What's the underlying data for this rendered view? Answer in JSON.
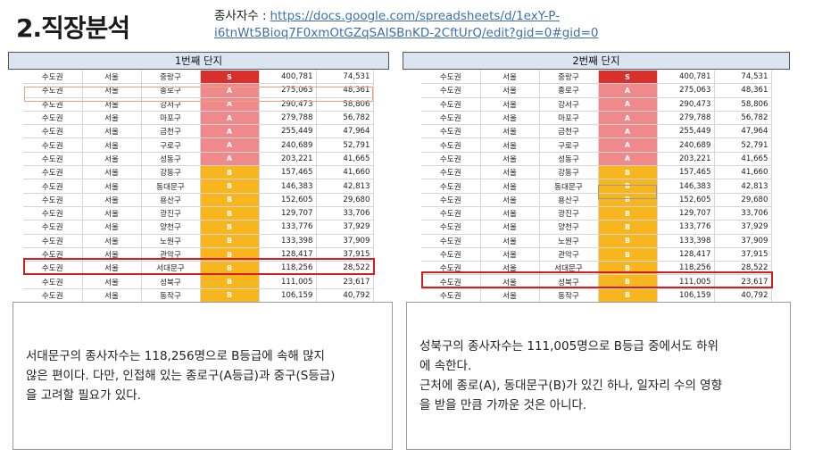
{
  "page_title": "2.직장분석",
  "source": {
    "label": "종사자수 :",
    "url_line1": "https://docs.google.com/spreadsheets/d/1exY-P-",
    "url_line2": "i6tnWt5Bioq7F0xmOtGZqSAISBnKD-2CftUrQ/edit?gid=0#gid=0"
  },
  "left": {
    "banner": "1번째 단지",
    "rows": [
      {
        "region": "수도권",
        "city": "서울",
        "district": "중랑구",
        "grade": "S",
        "pop": "400,781",
        "workers": "74,531"
      },
      {
        "region": "수도권",
        "city": "서울",
        "district": "종로구",
        "grade": "A",
        "pop": "275,063",
        "workers": "48,361"
      },
      {
        "region": "수도권",
        "city": "서울",
        "district": "강서구",
        "grade": "A",
        "pop": "290,473",
        "workers": "58,806"
      },
      {
        "region": "수도권",
        "city": "서울",
        "district": "마포구",
        "grade": "A",
        "pop": "279,788",
        "workers": "56,782"
      },
      {
        "region": "수도권",
        "city": "서울",
        "district": "금천구",
        "grade": "A",
        "pop": "255,449",
        "workers": "47,964"
      },
      {
        "region": "수도권",
        "city": "서울",
        "district": "구로구",
        "grade": "A",
        "pop": "240,689",
        "workers": "52,791"
      },
      {
        "region": "수도권",
        "city": "서울",
        "district": "성동구",
        "grade": "A",
        "pop": "203,221",
        "workers": "41,665"
      },
      {
        "region": "수도권",
        "city": "서울",
        "district": "강동구",
        "grade": "B",
        "pop": "157,465",
        "workers": "41,660"
      },
      {
        "region": "수도권",
        "city": "서울",
        "district": "동대문구",
        "grade": "B",
        "pop": "146,383",
        "workers": "42,813"
      },
      {
        "region": "수도권",
        "city": "서울",
        "district": "용산구",
        "grade": "B",
        "pop": "152,605",
        "workers": "29,680"
      },
      {
        "region": "수도권",
        "city": "서울",
        "district": "광진구",
        "grade": "B",
        "pop": "129,707",
        "workers": "33,706"
      },
      {
        "region": "수도권",
        "city": "서울",
        "district": "양천구",
        "grade": "B",
        "pop": "133,776",
        "workers": "37,929"
      },
      {
        "region": "수도권",
        "city": "서울",
        "district": "노원구",
        "grade": "B",
        "pop": "133,398",
        "workers": "37,909"
      },
      {
        "region": "수도권",
        "city": "서울",
        "district": "관악구",
        "grade": "B",
        "pop": "128,417",
        "workers": "37,915"
      },
      {
        "region": "수도권",
        "city": "서울",
        "district": "서대문구",
        "grade": "B",
        "pop": "118,256",
        "workers": "28,522"
      },
      {
        "region": "수도권",
        "city": "서울",
        "district": "성북구",
        "grade": "B",
        "pop": "111,005",
        "workers": "23,617"
      },
      {
        "region": "수도권",
        "city": "서울",
        "district": "동작구",
        "grade": "B",
        "pop": "106,159",
        "workers": "40,792"
      }
    ],
    "note": [
      "서대문구의 종사자수는 118,256명으로 B등급에 속해 많지",
      "않은 편이다. 다만, 인접해 있는 종로구(A등급)과 중구(S등급)",
      "을 고려할 필요가 있다."
    ]
  },
  "right": {
    "banner": "2번째 단지",
    "rows": [
      {
        "region": "수도권",
        "city": "서울",
        "district": "중랑구",
        "grade": "S",
        "pop": "400,781",
        "workers": "74,531"
      },
      {
        "region": "수도권",
        "city": "서울",
        "district": "종로구",
        "grade": "A",
        "pop": "275,063",
        "workers": "48,361"
      },
      {
        "region": "수도권",
        "city": "서울",
        "district": "강서구",
        "grade": "A",
        "pop": "290,473",
        "workers": "58,806"
      },
      {
        "region": "수도권",
        "city": "서울",
        "district": "마포구",
        "grade": "A",
        "pop": "279,788",
        "workers": "56,782"
      },
      {
        "region": "수도권",
        "city": "서울",
        "district": "금천구",
        "grade": "A",
        "pop": "255,449",
        "workers": "47,964"
      },
      {
        "region": "수도권",
        "city": "서울",
        "district": "구로구",
        "grade": "A",
        "pop": "240,689",
        "workers": "52,791"
      },
      {
        "region": "수도권",
        "city": "서울",
        "district": "성동구",
        "grade": "A",
        "pop": "203,221",
        "workers": "41,665"
      },
      {
        "region": "수도권",
        "city": "서울",
        "district": "강동구",
        "grade": "B",
        "pop": "157,465",
        "workers": "41,660"
      },
      {
        "region": "수도권",
        "city": "서울",
        "district": "동대문구",
        "grade": "B",
        "pop": "146,383",
        "workers": "42,813"
      },
      {
        "region": "수도권",
        "city": "서울",
        "district": "용산구",
        "grade": "B",
        "pop": "152,605",
        "workers": "29,680"
      },
      {
        "region": "수도권",
        "city": "서울",
        "district": "광진구",
        "grade": "B",
        "pop": "129,707",
        "workers": "33,706"
      },
      {
        "region": "수도권",
        "city": "서울",
        "district": "양천구",
        "grade": "B",
        "pop": "133,776",
        "workers": "37,929"
      },
      {
        "region": "수도권",
        "city": "서울",
        "district": "노원구",
        "grade": "B",
        "pop": "133,398",
        "workers": "37,909"
      },
      {
        "region": "수도권",
        "city": "서울",
        "district": "관악구",
        "grade": "B",
        "pop": "128,417",
        "workers": "37,915"
      },
      {
        "region": "수도권",
        "city": "서울",
        "district": "서대문구",
        "grade": "B",
        "pop": "118,256",
        "workers": "28,522"
      },
      {
        "region": "수도권",
        "city": "서울",
        "district": "성북구",
        "grade": "B",
        "pop": "111,005",
        "workers": "23,617"
      },
      {
        "region": "수도권",
        "city": "서울",
        "district": "동작구",
        "grade": "B",
        "pop": "106,159",
        "workers": "40,792"
      }
    ],
    "note": [
      "성북구의 종사자수는 111,005명으로 B등급 중에서도 하위",
      "에 속한다.",
      "근처에 종로(A), 동대문구(B)가 있긴 하나, 일자리 수의 영향",
      "을 받을 만큼 가까운 것은 아니다."
    ]
  },
  "colors": {
    "grade_S": "#d9302b",
    "grade_A": "#f0898c",
    "grade_B": "#f7b51e",
    "highlight_red": "#d11f1f",
    "highlight_orange": "#f2a27a",
    "banner_bg": "#dbe5f1",
    "link": "#3d6fb0"
  }
}
